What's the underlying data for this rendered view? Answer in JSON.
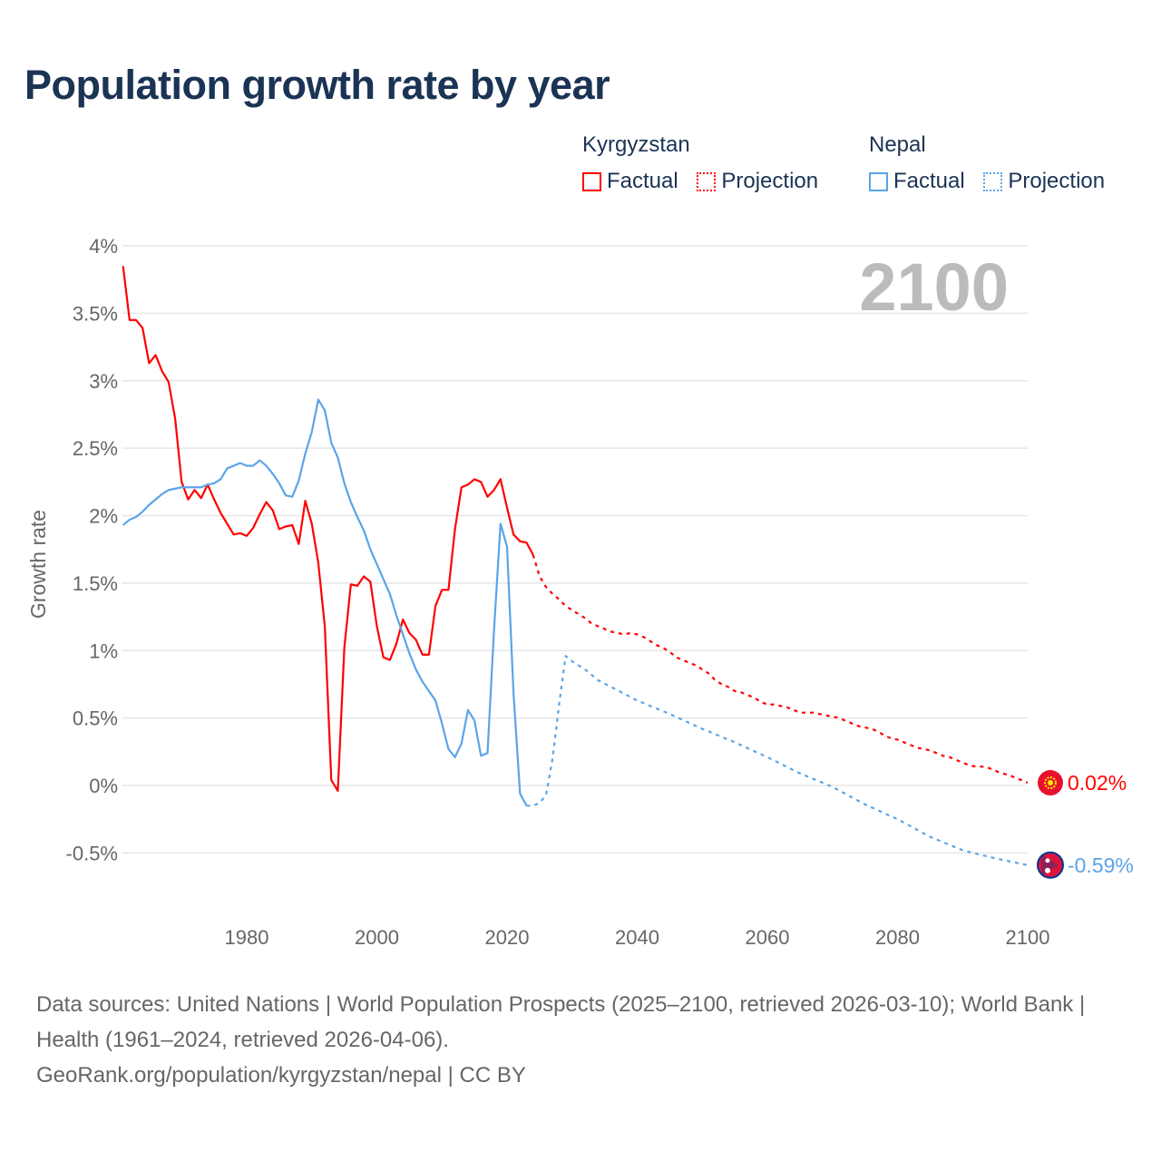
{
  "title": "Population growth rate by year",
  "legend": {
    "groups": [
      {
        "name": "Kyrgyzstan",
        "factual": "Factual",
        "projection": "Projection",
        "color": "#ff0000"
      },
      {
        "name": "Nepal",
        "factual": "Factual",
        "projection": "Projection",
        "color": "#5ba4e8"
      }
    ]
  },
  "year_label": "2100",
  "footer": {
    "sources": "Data sources: United Nations | World Population Prospects (2025–2100, retrieved 2026-03-10); World Bank | Health (1961–2024, retrieved 2026-04-06).",
    "url": "GeoRank.org/population/kyrgyzstan/nepal | CC BY"
  },
  "chart_data": {
    "type": "line",
    "title": "Population growth rate by year",
    "xlabel": "",
    "ylabel": "Growth rate",
    "xlim": [
      1961,
      2100
    ],
    "ylim": [
      -0.8,
      4
    ],
    "xticks": [
      "1980",
      "2000",
      "2020",
      "2040",
      "2060",
      "2080",
      "2100"
    ],
    "yticks": [
      "4%",
      "3.5%",
      "3%",
      "2.5%",
      "2%",
      "1.5%",
      "1%",
      "0.5%",
      "0%",
      "-0.5%"
    ],
    "grid": true,
    "series": [
      {
        "name": "Kyrgyzstan Factual",
        "color": "#ff0000",
        "dashed": false,
        "x0": 1961,
        "values": [
          3.85,
          3.45,
          3.45,
          3.39,
          3.13,
          3.19,
          3.07,
          2.99,
          2.72,
          2.25,
          2.12,
          2.19,
          2.13,
          2.23,
          2.12,
          2.02,
          1.94,
          1.86,
          1.87,
          1.85,
          1.91,
          2.01,
          2.1,
          2.04,
          1.9,
          1.92,
          1.93,
          1.79,
          2.11,
          1.94,
          1.65,
          1.18,
          0.04,
          -0.04,
          1.02,
          1.49,
          1.48,
          1.55,
          1.51,
          1.18,
          0.95,
          0.93,
          1.05,
          1.23,
          1.13,
          1.08,
          0.97,
          0.97,
          1.33,
          1.45,
          1.45,
          1.9,
          2.21,
          2.23,
          2.27,
          2.25,
          2.14,
          2.19,
          2.27,
          2.06,
          1.86,
          1.81,
          1.8,
          1.71
        ]
      },
      {
        "name": "Kyrgyzstan Projection",
        "color": "#ff0000",
        "dashed": true,
        "x0": 2024,
        "values": [
          1.71,
          1.55,
          1.47,
          1.42,
          1.38,
          1.33,
          1.3,
          1.27,
          1.24,
          1.2,
          1.18,
          1.16,
          1.14,
          1.13,
          1.12,
          1.13,
          1.12,
          1.1,
          1.07,
          1.04,
          1.02,
          0.99,
          0.95,
          0.93,
          0.91,
          0.89,
          0.86,
          0.83,
          0.78,
          0.75,
          0.73,
          0.7,
          0.69,
          0.67,
          0.65,
          0.62,
          0.6,
          0.6,
          0.59,
          0.58,
          0.56,
          0.54,
          0.54,
          0.54,
          0.53,
          0.52,
          0.51,
          0.5,
          0.48,
          0.46,
          0.44,
          0.43,
          0.42,
          0.4,
          0.37,
          0.35,
          0.34,
          0.32,
          0.3,
          0.28,
          0.27,
          0.26,
          0.24,
          0.22,
          0.21,
          0.19,
          0.17,
          0.15,
          0.14,
          0.14,
          0.13,
          0.11,
          0.09,
          0.08,
          0.06,
          0.04,
          0.02
        ]
      },
      {
        "name": "Nepal Factual",
        "color": "#5ba4e8",
        "dashed": false,
        "x0": 1961,
        "values": [
          1.93,
          1.97,
          1.99,
          2.03,
          2.08,
          2.12,
          2.16,
          2.19,
          2.2,
          2.21,
          2.21,
          2.21,
          2.21,
          2.23,
          2.24,
          2.27,
          2.35,
          2.37,
          2.39,
          2.37,
          2.37,
          2.41,
          2.37,
          2.31,
          2.24,
          2.15,
          2.14,
          2.26,
          2.46,
          2.62,
          2.86,
          2.78,
          2.54,
          2.43,
          2.24,
          2.1,
          1.99,
          1.89,
          1.75,
          1.64,
          1.53,
          1.42,
          1.26,
          1.12,
          0.98,
          0.86,
          0.77,
          0.7,
          0.63,
          0.46,
          0.27,
          0.21,
          0.31,
          0.56,
          0.48,
          0.22,
          0.24,
          1.15,
          1.94,
          1.77,
          0.68,
          -0.06,
          -0.15
        ]
      },
      {
        "name": "Nepal Projection",
        "color": "#5ba4e8",
        "dashed": true,
        "x": [
          2023,
          2024,
          2025,
          2026,
          2027,
          2028,
          2029,
          2030,
          2032,
          2034,
          2036,
          2040,
          2045,
          2050,
          2055,
          2060,
          2065,
          2070,
          2075,
          2080,
          2085,
          2090,
          2095,
          2100
        ],
        "values": [
          -0.15,
          -0.15,
          -0.13,
          -0.07,
          0.2,
          0.6,
          0.96,
          0.92,
          0.86,
          0.78,
          0.73,
          0.63,
          0.53,
          0.42,
          0.32,
          0.21,
          0.09,
          -0.01,
          -0.14,
          -0.25,
          -0.38,
          -0.48,
          -0.54,
          -0.59
        ]
      }
    ],
    "end_labels": [
      {
        "series": "Kyrgyzstan",
        "value": 0.02,
        "text": "0.02%",
        "color": "#ff0000"
      },
      {
        "series": "Nepal",
        "value": -0.59,
        "text": "-0.59%",
        "color": "#5ba4e8"
      }
    ]
  }
}
